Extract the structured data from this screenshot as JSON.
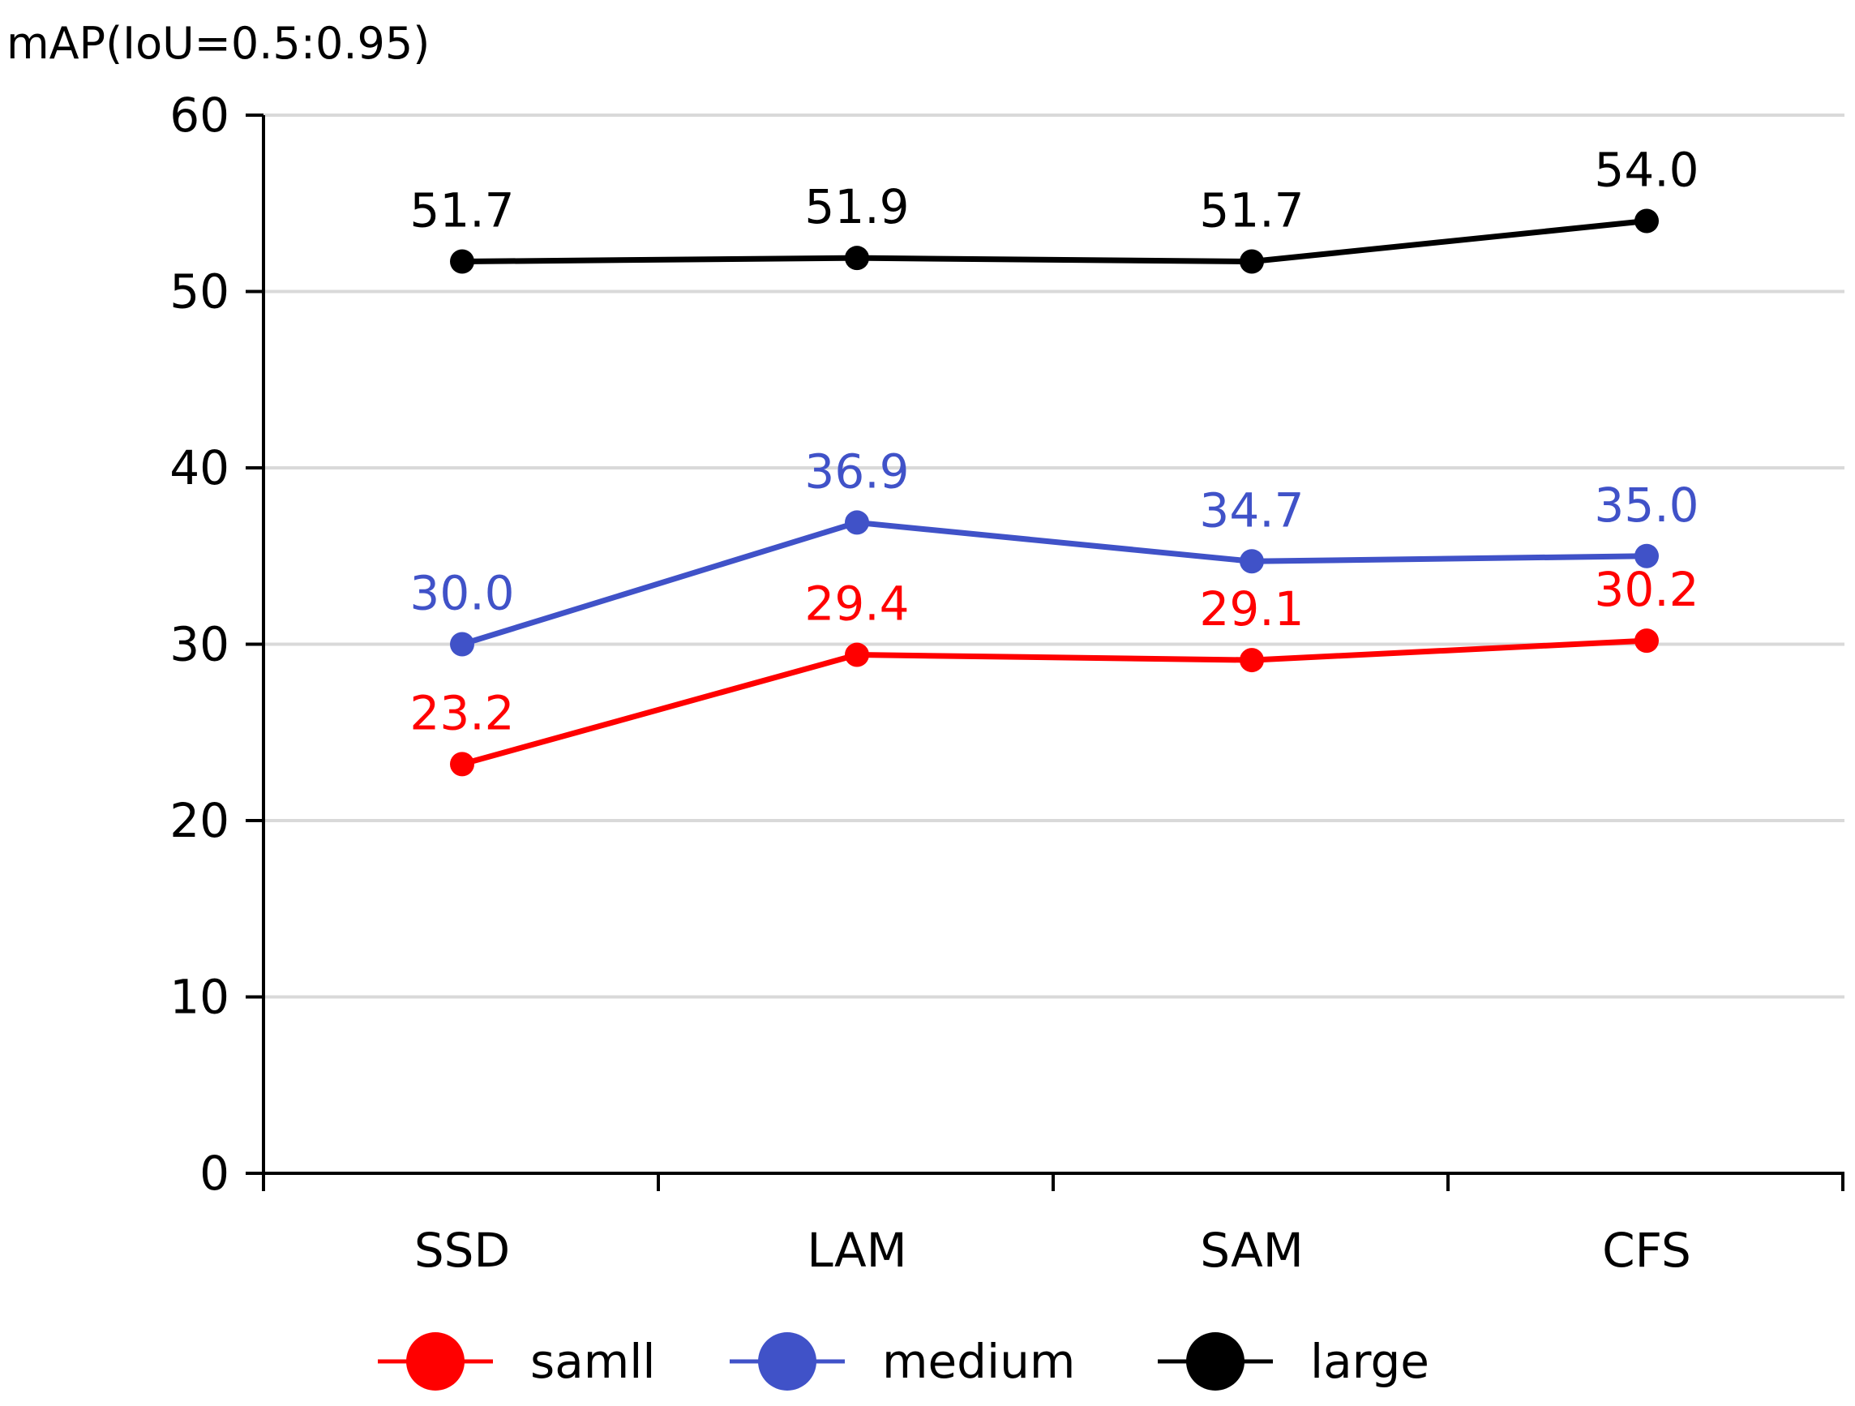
{
  "chart_data": {
    "type": "line",
    "title": "",
    "ylabel": "mAP(IoU=0.5:0.95)",
    "xlabel": "",
    "categories": [
      "SSD",
      "LAM",
      "SAM",
      "CFS"
    ],
    "ylim": [
      0,
      60
    ],
    "yticks": [
      0,
      10,
      20,
      30,
      40,
      50,
      60
    ],
    "grid": true,
    "legend_position": "bottom",
    "series": [
      {
        "name": "samll",
        "color": "#ff0000",
        "values": [
          23.2,
          29.4,
          29.1,
          30.2
        ],
        "labels": [
          "23.2",
          "29.4",
          "29.1",
          "30.2"
        ]
      },
      {
        "name": "medium",
        "color": "#4052c8",
        "values": [
          30.0,
          36.9,
          34.7,
          35.0
        ],
        "labels": [
          "30.0",
          "36.9",
          "34.7",
          "35.0"
        ]
      },
      {
        "name": "large",
        "color": "#000000",
        "values": [
          51.7,
          51.9,
          51.7,
          54.0
        ],
        "labels": [
          "51.7",
          "51.9",
          "51.7",
          "54.0"
        ]
      }
    ]
  }
}
